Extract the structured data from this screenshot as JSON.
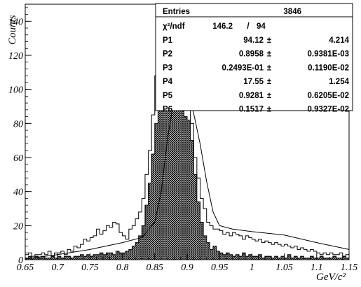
{
  "chart_data": {
    "type": "histogram",
    "xlabel": "GeV/c²",
    "ylabel": "Counts",
    "xlim": [
      0.65,
      1.15
    ],
    "ylim": [
      0,
      150
    ],
    "x_ticks": [
      "0.65",
      "0.7",
      "0.75",
      "0.8",
      "0.85",
      "0.9",
      "0.95",
      "1",
      "1.05",
      "1.1",
      "1.15"
    ],
    "y_ticks": [
      "0",
      "20",
      "40",
      "60",
      "80",
      "100",
      "120",
      "140"
    ],
    "bin_width": 0.005,
    "series": [
      {
        "fill": "none",
        "x_start": 0.65,
        "values": [
          3,
          4,
          2,
          3,
          3,
          4,
          3,
          5,
          2,
          4,
          4,
          5,
          3,
          6,
          5,
          8,
          7,
          9,
          12,
          11,
          13,
          14,
          18,
          15,
          17,
          20,
          19,
          22,
          21,
          16,
          14,
          12,
          18,
          20,
          24,
          28,
          36,
          50,
          64,
          85,
          108,
          112,
          108,
          142,
          112,
          110,
          103,
          100,
          92,
          94,
          88,
          80,
          60,
          48,
          36,
          30,
          22,
          20,
          18,
          18,
          17,
          15,
          16,
          14,
          16,
          15,
          14,
          12,
          14,
          13,
          12,
          11,
          12,
          10,
          11,
          10,
          9,
          10,
          9,
          8,
          9,
          8,
          7,
          8,
          6,
          7,
          6,
          5,
          6,
          5,
          4,
          3,
          4,
          3,
          4,
          3,
          3,
          4,
          2,
          3
        ]
      },
      {
        "fill": "crosshatch",
        "x_start": 0.65,
        "values": [
          1,
          2,
          1,
          2,
          1,
          2,
          1,
          1,
          2,
          1,
          2,
          1,
          2,
          2,
          1,
          2,
          2,
          3,
          2,
          3,
          2,
          3,
          3,
          4,
          3,
          4,
          4,
          3,
          5,
          4,
          4,
          5,
          6,
          8,
          10,
          14,
          20,
          32,
          45,
          62,
          80,
          100,
          100,
          128,
          110,
          104,
          98,
          96,
          90,
          84,
          82,
          70,
          50,
          34,
          22,
          14,
          10,
          6,
          8,
          5,
          4,
          3,
          4,
          3,
          2,
          3,
          2,
          4,
          2,
          3,
          2,
          2,
          3,
          1,
          2,
          2,
          1,
          2,
          1,
          2,
          1,
          3,
          1,
          2,
          1,
          2,
          1,
          1,
          2,
          1,
          1,
          2,
          1,
          1,
          1,
          2,
          1,
          1,
          2,
          1
        ]
      },
      {
        "fill": "fit-curve",
        "points": [
          [
            0.65,
            0.5
          ],
          [
            0.7,
            3
          ],
          [
            0.75,
            6
          ],
          [
            0.8,
            10
          ],
          [
            0.83,
            13
          ],
          [
            0.85,
            22
          ],
          [
            0.86,
            40
          ],
          [
            0.87,
            72
          ],
          [
            0.88,
            95
          ],
          [
            0.885,
            102
          ],
          [
            0.89,
            104
          ],
          [
            0.895,
            103
          ],
          [
            0.9,
            99
          ],
          [
            0.91,
            86
          ],
          [
            0.92,
            68
          ],
          [
            0.93,
            46
          ],
          [
            0.94,
            28
          ],
          [
            0.95,
            20
          ],
          [
            0.97,
            18
          ],
          [
            1.0,
            16.5
          ],
          [
            1.05,
            14.5
          ],
          [
            1.1,
            10
          ],
          [
            1.15,
            6
          ]
        ]
      }
    ],
    "stats": {
      "entries_label": "Entries",
      "entries_value": "3846",
      "chi2_label": "χ²/ndf",
      "chi2_value": "146.2",
      "chi2_sep": "/",
      "ndf_value": "94",
      "params": [
        {
          "name": "P1",
          "value": "94.12",
          "pm": "±",
          "error": "4.214"
        },
        {
          "name": "P2",
          "value": "0.8958",
          "pm": "±",
          "error": "0.9381E-03"
        },
        {
          "name": "P3",
          "value": "0.2493E-01",
          "pm": "±",
          "error": "0.1190E-02"
        },
        {
          "name": "P4",
          "value": "17.55",
          "pm": "±",
          "error": "1.254"
        },
        {
          "name": "P5",
          "value": "0.9281",
          "pm": "±",
          "error": "0.6205E-02"
        },
        {
          "name": "P6",
          "value": "0.1517",
          "pm": "±",
          "error": "0.9327E-02"
        }
      ]
    }
  }
}
